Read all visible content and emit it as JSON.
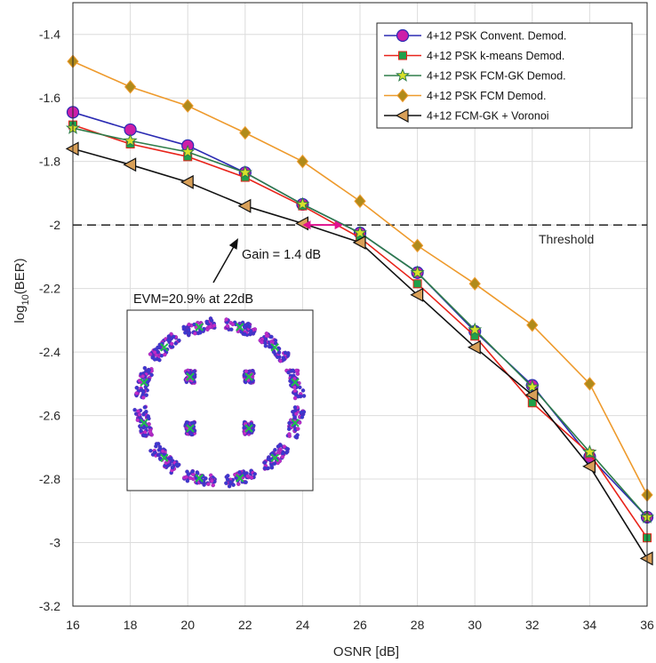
{
  "chart_data": {
    "type": "line",
    "xlabel": "OSNR [dB]",
    "ylabel": "log",
    "ylabel_sub": "10",
    "ylabel_tail": "(BER)",
    "xlim": [
      16,
      36
    ],
    "ylim": [
      -3.2,
      -1.3
    ],
    "x_ticks": [
      16,
      18,
      20,
      22,
      24,
      26,
      28,
      30,
      32,
      34,
      36
    ],
    "y_ticks": [
      -1.4,
      -1.6,
      -1.8,
      -2.0,
      -2.2,
      -2.4,
      -2.6,
      -2.8,
      -3.0,
      -3.2
    ],
    "y_tick_labels": [
      "-1.4",
      "-1.6",
      "-1.8",
      "-2",
      "-2.2",
      "-2.4",
      "-2.6",
      "-2.8",
      "-3",
      "-3.2"
    ],
    "grid": true,
    "legend_position": "top-right",
    "x": [
      16,
      18,
      20,
      22,
      24,
      26,
      28,
      30,
      32,
      34,
      36
    ],
    "series": [
      {
        "name": "4+12 PSK Convent. Demod.",
        "color": "#2b2bb3",
        "marker": "circle",
        "marker_fill": "#cc1fa8",
        "values": [
          -1.645,
          -1.7,
          -1.75,
          -1.835,
          -1.935,
          -2.025,
          -2.15,
          -2.335,
          -2.505,
          -2.73,
          -2.92
        ]
      },
      {
        "name": "4+12 PSK k-means Demod.",
        "color": "#e8231a",
        "marker": "square",
        "marker_fill": "#1fa04a",
        "values": [
          -1.685,
          -1.745,
          -1.785,
          -1.85,
          -1.94,
          -2.04,
          -2.185,
          -2.35,
          -2.56,
          -2.72,
          -2.985
        ]
      },
      {
        "name": "4+12 PSK FCM-GK Demod.",
        "color": "#2e7d4a",
        "marker": "star",
        "marker_fill": "#d8e02a",
        "values": [
          -1.695,
          -1.735,
          -1.77,
          -1.835,
          -1.935,
          -2.025,
          -2.15,
          -2.33,
          -2.51,
          -2.715,
          -2.92
        ]
      },
      {
        "name": "4+12 PSK FCM Demod.",
        "color": "#ee9a2c",
        "marker": "diamond",
        "marker_fill": "#b08a1a",
        "values": [
          -1.485,
          -1.565,
          -1.625,
          -1.71,
          -1.8,
          -1.925,
          -2.065,
          -2.185,
          -2.315,
          -2.5,
          -2.85
        ]
      },
      {
        "name": "4+12 FCM-GK + Voronoi",
        "color": "#111111",
        "marker": "triangle-left",
        "marker_fill": "#d9a058",
        "values": [
          -1.76,
          -1.81,
          -1.865,
          -1.94,
          -1.995,
          -2.055,
          -2.22,
          -2.385,
          -2.535,
          -2.76,
          -3.05
        ]
      }
    ],
    "threshold": {
      "value": -2.0,
      "label": "Threshold"
    },
    "annotations": {
      "gain_label": "Gain = 1.4 dB",
      "gain_from_x": 24.0,
      "gain_to_x": 25.4,
      "evm_label": "EVM=20.9% at 22dB"
    }
  }
}
